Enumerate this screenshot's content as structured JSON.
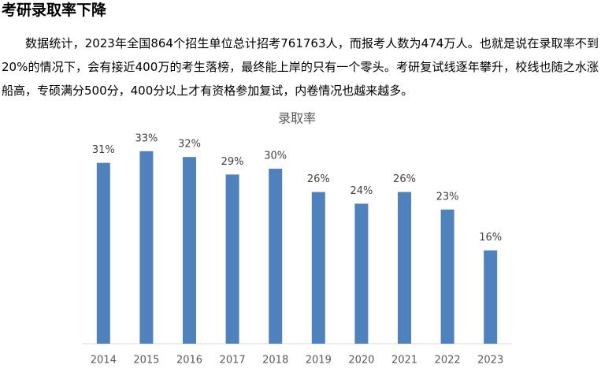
{
  "heading": "考研录取率下降",
  "paragraph": "数据统计，2023年全国864个招生单位总计招考761763人，而报考人数为474万人。也就是说在录取率不到20%的情况下，会有接近400万的考生落榜，最终能上岸的只有一个零头。考研复试线逐年攀升，校线也随之水涨船高，专硕满分500分，400分以上才有资格参加复试，内卷情况也越来越多。",
  "chart_data": {
    "type": "bar",
    "title": "录取率",
    "categories": [
      "2014",
      "2015",
      "2016",
      "2017",
      "2018",
      "2019",
      "2020",
      "2021",
      "2022",
      "2023"
    ],
    "values": [
      31,
      33,
      32,
      29,
      30,
      26,
      24,
      26,
      23,
      16
    ],
    "value_labels": [
      "31%",
      "33%",
      "32%",
      "29%",
      "30%",
      "26%",
      "24%",
      "26%",
      "23%",
      "16%"
    ],
    "color": "#4f81bd"
  }
}
